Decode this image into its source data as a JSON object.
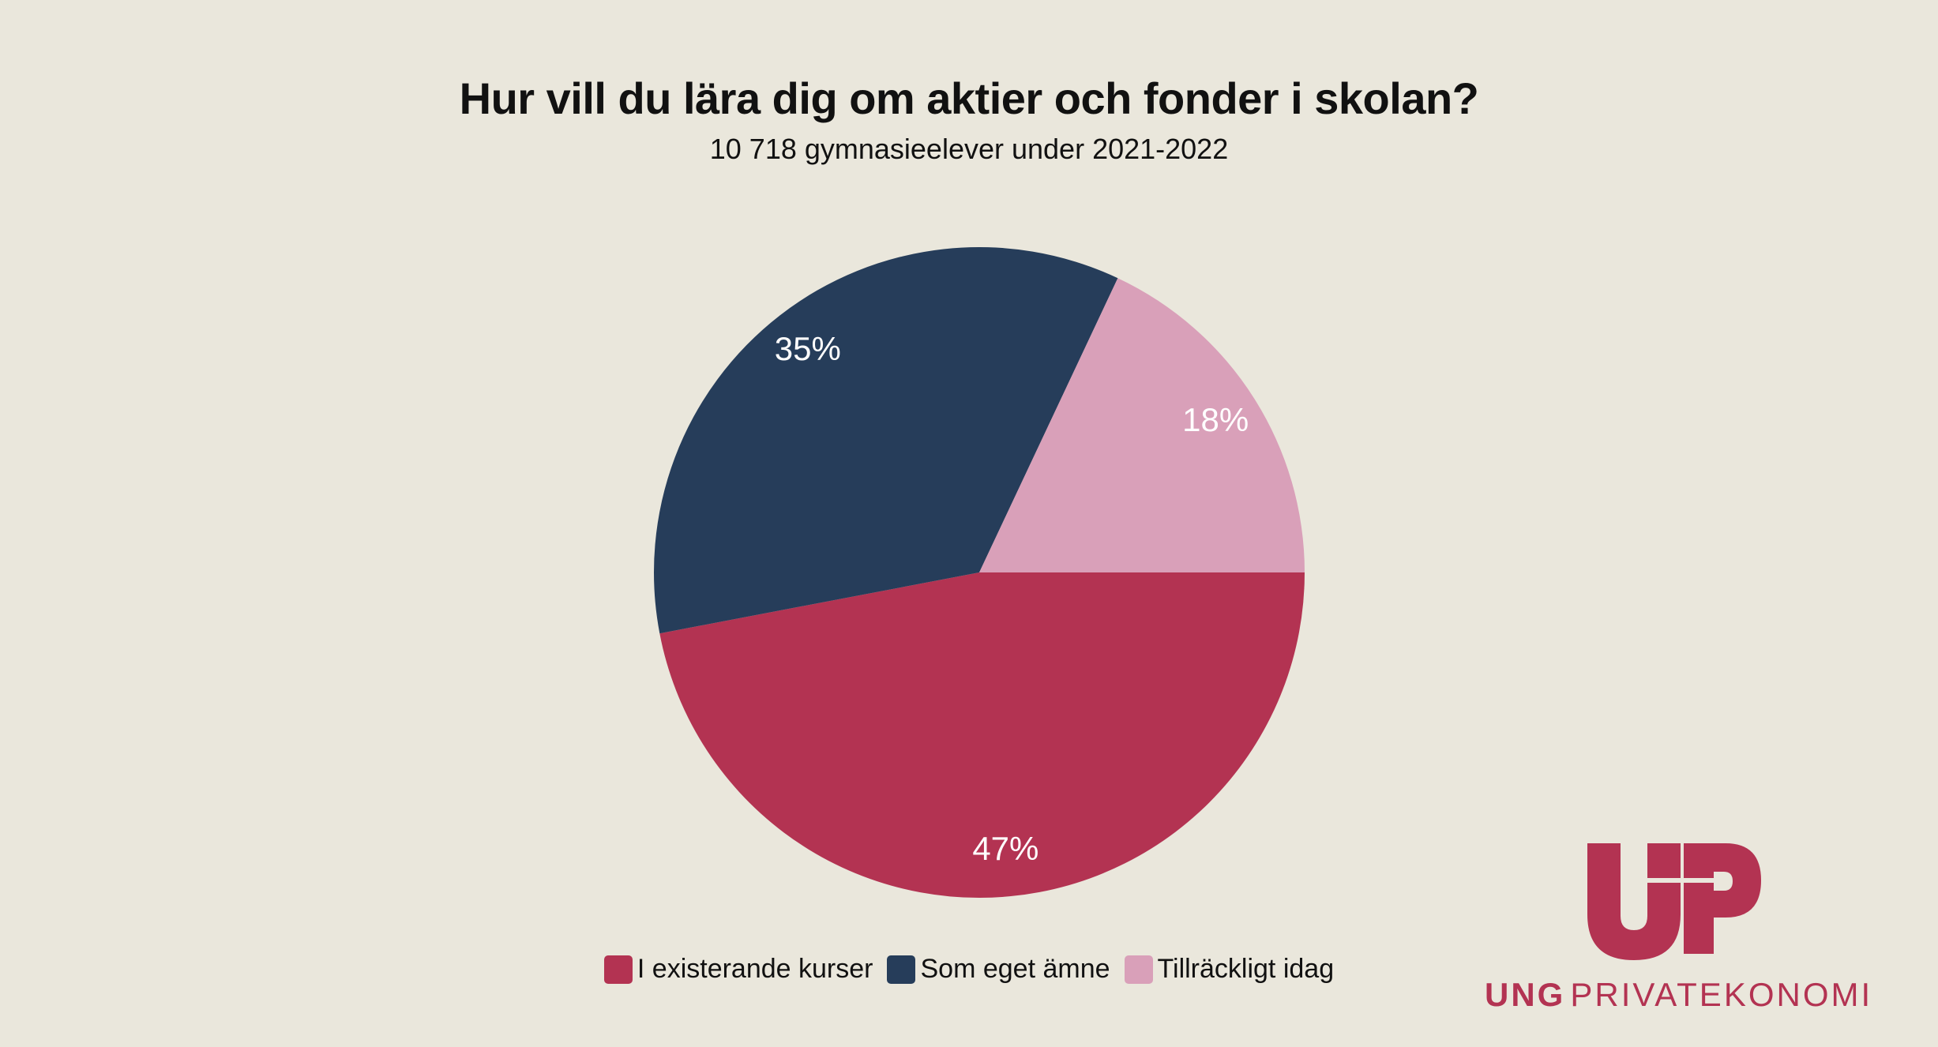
{
  "chart_data": {
    "type": "pie",
    "title": "Hur vill du lära dig om aktier och fonder i skolan?",
    "subtitle": "10 718 gymnasieelever under 2021-2022",
    "categories": [
      "I existerande kurser",
      "Som eget ämne",
      "Tillräckligt idag"
    ],
    "values": [
      47,
      35,
      18
    ],
    "value_labels": [
      "47%",
      "35%",
      "18%"
    ],
    "colors": [
      "#B33352",
      "#263D5A",
      "#D9A0B9"
    ],
    "legend_position": "bottom"
  },
  "logo": {
    "mark_text": "UP",
    "name_bold": "UNG",
    "name_regular": "PRIVATEKONOMI",
    "color": "#B33352"
  },
  "colors": {
    "background": "#EAE7DC",
    "text": "#111111"
  }
}
